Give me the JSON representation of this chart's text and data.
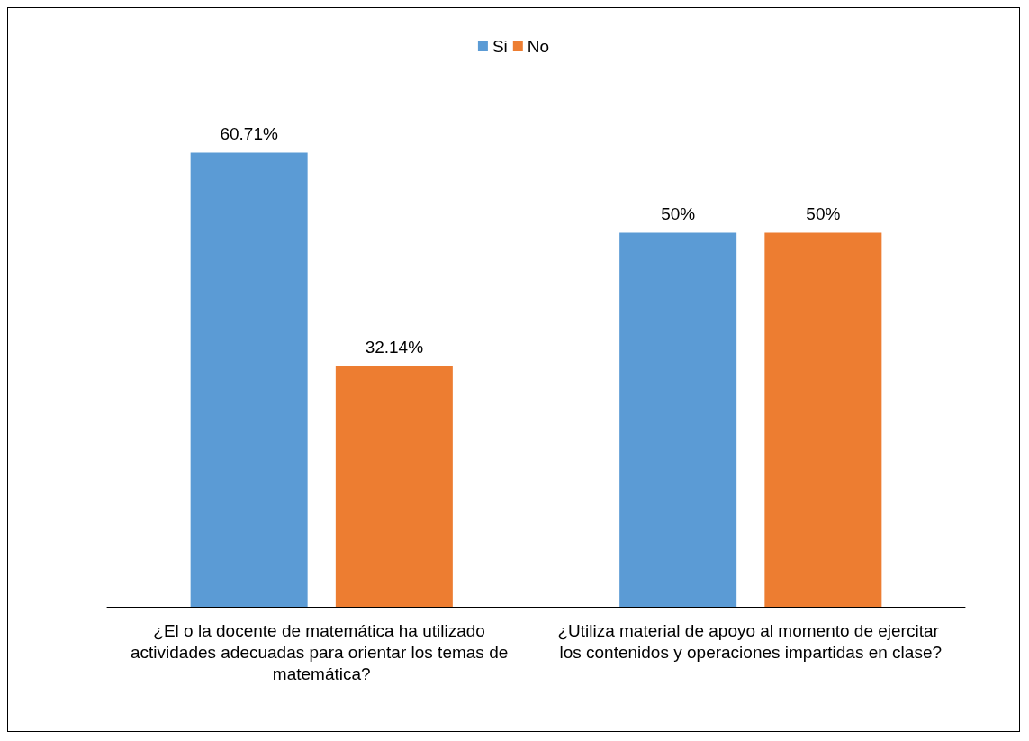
{
  "chart_data": {
    "type": "bar",
    "categories": [
      "¿El o la docente de matemática ha utilizado actividades adecuadas para orientar los temas de matemática?",
      "¿Utiliza material de apoyo al momento de ejercitar los contenidos y operaciones impartidas en clase?"
    ],
    "series": [
      {
        "name": "Si",
        "color": "#5b9bd5",
        "values": [
          60.71,
          50
        ],
        "value_labels": [
          "60.71%",
          "50%"
        ]
      },
      {
        "name": "No",
        "color": "#ed7d31",
        "values": [
          32.14,
          50
        ],
        "value_labels": [
          "32.14%",
          "50%"
        ]
      }
    ],
    "legend": "top"
  }
}
